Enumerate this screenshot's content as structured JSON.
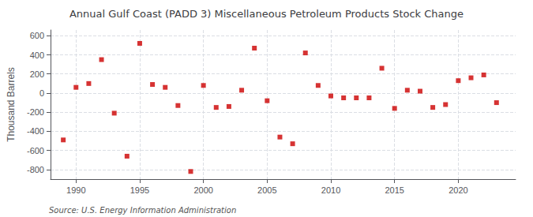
{
  "chart_data": {
    "type": "scatter",
    "title": "Annual Gulf Coast (PADD 3) Miscellaneous Petroleum Products Stock Change",
    "ylabel": "Thousand Barrels",
    "annotation": "Source: U.S. Energy Information Administration",
    "x": [
      1989,
      1990,
      1991,
      1992,
      1993,
      1994,
      1995,
      1996,
      1997,
      1998,
      1999,
      2000,
      2001,
      2002,
      2003,
      2004,
      2005,
      2006,
      2007,
      2008,
      2009,
      2010,
      2011,
      2012,
      2013,
      2014,
      2015,
      2016,
      2017,
      2018,
      2019,
      2020,
      2021,
      2022,
      2023
    ],
    "values": [
      -490,
      60,
      100,
      350,
      -210,
      -660,
      520,
      90,
      60,
      -130,
      -820,
      80,
      -150,
      -140,
      30,
      470,
      -80,
      -460,
      -530,
      420,
      80,
      -30,
      -50,
      -50,
      -50,
      260,
      -160,
      30,
      20,
      -150,
      -120,
      130,
      160,
      190,
      -100
    ],
    "color": "#cc0000",
    "marker": "square",
    "xlim": [
      1988,
      2024.5
    ],
    "xticks": [
      1990,
      1995,
      2000,
      2005,
      2010,
      2015,
      2020
    ],
    "ylim": [
      -900,
      660
    ],
    "yticks": [
      -800,
      -600,
      -400,
      -200,
      0,
      200,
      400,
      600
    ],
    "grid": true
  }
}
